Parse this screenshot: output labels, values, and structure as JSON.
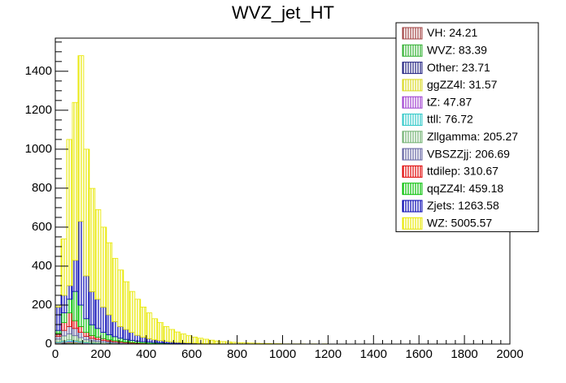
{
  "chart_data": {
    "type": "histogram",
    "stacked": true,
    "title": "WVZ_jet_HT",
    "bins": [
      0,
      25,
      50,
      75,
      100,
      125,
      150,
      175,
      200,
      225,
      250,
      275,
      300,
      325,
      350,
      375,
      400,
      425,
      450,
      475,
      500,
      525,
      550,
      575,
      600,
      625,
      650,
      675,
      700,
      725,
      750,
      775,
      800,
      825,
      850,
      875,
      900,
      925,
      950,
      975,
      1000,
      1025,
      1050,
      1075,
      1100,
      1125,
      1150,
      1175,
      1200
    ],
    "series": [
      {
        "name": "VH: 24.21",
        "color": "#a04040",
        "values": [
          1,
          1,
          1,
          1,
          1,
          0,
          0,
          0,
          0,
          0,
          0,
          0,
          0,
          0,
          0,
          0,
          0,
          0,
          0,
          0,
          0,
          0,
          0,
          0,
          0,
          0,
          0,
          0,
          0,
          0,
          0,
          0,
          0,
          0,
          0,
          0,
          0,
          0,
          0,
          0,
          0,
          0,
          0,
          0,
          0,
          0,
          0,
          0
        ]
      },
      {
        "name": "WVZ: 83.39",
        "color": "#30b030",
        "values": [
          2,
          3,
          4,
          4,
          3,
          2,
          2,
          1,
          1,
          1,
          1,
          0,
          0,
          0,
          0,
          0,
          0,
          0,
          0,
          0,
          0,
          0,
          0,
          0,
          0,
          0,
          0,
          0,
          0,
          0,
          0,
          0,
          0,
          0,
          0,
          0,
          0,
          0,
          0,
          0,
          0,
          0,
          0,
          0,
          0,
          0,
          0,
          0
        ]
      },
      {
        "name": "Other: 23.71",
        "color": "#202080",
        "values": [
          1,
          2,
          2,
          1,
          1,
          1,
          0,
          0,
          0,
          0,
          0,
          0,
          0,
          0,
          0,
          0,
          0,
          0,
          0,
          0,
          0,
          0,
          0,
          0,
          0,
          0,
          0,
          0,
          0,
          0,
          0,
          0,
          0,
          0,
          0,
          0,
          0,
          0,
          0,
          0,
          0,
          0,
          0,
          0,
          0,
          0,
          0,
          0
        ]
      },
      {
        "name": "ggZZ4l: 31.57",
        "color": "#d8d820",
        "values": [
          1,
          2,
          3,
          3,
          2,
          1,
          1,
          1,
          0,
          0,
          0,
          0,
          0,
          0,
          0,
          0,
          0,
          0,
          0,
          0,
          0,
          0,
          0,
          0,
          0,
          0,
          0,
          0,
          0,
          0,
          0,
          0,
          0,
          0,
          0,
          0,
          0,
          0,
          0,
          0,
          0,
          0,
          0,
          0,
          0,
          0,
          0,
          0
        ]
      },
      {
        "name": "tZ: 47.87",
        "color": "#a040d0",
        "values": [
          2,
          3,
          4,
          3,
          2,
          2,
          1,
          1,
          1,
          0,
          0,
          0,
          0,
          0,
          0,
          0,
          0,
          0,
          0,
          0,
          0,
          0,
          0,
          0,
          0,
          0,
          0,
          0,
          0,
          0,
          0,
          0,
          0,
          0,
          0,
          0,
          0,
          0,
          0,
          0,
          0,
          0,
          0,
          0,
          0,
          0,
          0,
          0
        ]
      },
      {
        "name": "ttll: 76.72",
        "color": "#30c8c8",
        "values": [
          3,
          6,
          8,
          6,
          4,
          3,
          2,
          2,
          1,
          1,
          1,
          0,
          0,
          0,
          0,
          0,
          0,
          0,
          0,
          0,
          0,
          0,
          0,
          0,
          0,
          0,
          0,
          0,
          0,
          0,
          0,
          0,
          0,
          0,
          0,
          0,
          0,
          0,
          0,
          0,
          0,
          0,
          0,
          0,
          0,
          0,
          0,
          0
        ]
      },
      {
        "name": "Zllgamma: 205.27",
        "color": "#70b070",
        "values": [
          15,
          25,
          30,
          25,
          20,
          13,
          10,
          8,
          7,
          5,
          4,
          3,
          2,
          2,
          1,
          1,
          1,
          1,
          0,
          0,
          0,
          0,
          0,
          0,
          0,
          0,
          0,
          0,
          0,
          0,
          0,
          0,
          0,
          0,
          0,
          0,
          0,
          0,
          0,
          0,
          0,
          0,
          0,
          0,
          0,
          0,
          0,
          0
        ]
      },
      {
        "name": "VBSZZjj: 206.69",
        "color": "#6060a0",
        "values": [
          15,
          28,
          38,
          37,
          27,
          18,
          13,
          11,
          9,
          8,
          6,
          6,
          5,
          3,
          3,
          2,
          2,
          1,
          1,
          1,
          1,
          1,
          0,
          0,
          0,
          0,
          0,
          0,
          0,
          0,
          0,
          0,
          0,
          0,
          0,
          0,
          0,
          0,
          0,
          0,
          0,
          0,
          0,
          0,
          0,
          0,
          0,
          0
        ]
      },
      {
        "name": "ttdilep: 310.67",
        "color": "#e00000",
        "values": [
          15,
          40,
          70,
          40,
          30,
          20,
          15,
          11,
          9,
          7,
          5,
          4,
          3,
          3,
          2,
          2,
          1,
          1,
          1,
          1,
          0,
          0,
          1,
          1,
          0,
          0,
          0,
          0,
          0,
          0,
          0,
          0,
          0,
          0,
          0,
          0,
          0,
          0,
          0,
          0,
          0,
          0,
          0,
          0,
          0,
          0,
          0,
          0
        ]
      },
      {
        "name": "qqZZ4l: 459.18",
        "color": "#00c000",
        "values": [
          15,
          50,
          70,
          150,
          110,
          70,
          55,
          45,
          32,
          26,
          21,
          17,
          14,
          11,
          9,
          7,
          6,
          5,
          4,
          3,
          3,
          2,
          2,
          1,
          2,
          1,
          1,
          1,
          1,
          0,
          0,
          0,
          0,
          0,
          0,
          0,
          0,
          0,
          0,
          0,
          0,
          0,
          0,
          0,
          0,
          0,
          0,
          0
        ]
      },
      {
        "name": "Zjets: 1263.58",
        "color": "#0000b0",
        "values": [
          120,
          90,
          70,
          160,
          430,
          220,
          170,
          150,
          130,
          102,
          77,
          60,
          51,
          41,
          30,
          23,
          18,
          14,
          12,
          9,
          7,
          6,
          4,
          4,
          3,
          3,
          2,
          1,
          1,
          1,
          1,
          1,
          1,
          0,
          0,
          0,
          0,
          0,
          0,
          0,
          0,
          0,
          0,
          0,
          0,
          0,
          0,
          0
        ]
      },
      {
        "name": "WZ: 5005.57",
        "color": "#e8e800",
        "values": [
          10,
          290,
          750,
          810,
          850,
          650,
          530,
          460,
          410,
          370,
          325,
          290,
          245,
          210,
          185,
          155,
          132,
          108,
          92,
          76,
          64,
          53,
          45,
          37,
          31,
          26,
          22,
          18,
          14,
          12,
          10,
          8,
          6,
          6,
          5,
          4,
          3,
          3,
          2,
          2,
          1,
          1,
          1,
          1,
          0,
          1,
          0,
          1
        ]
      }
    ],
    "xlim": [
      0,
      2000
    ],
    "xticks": [
      0,
      200,
      400,
      600,
      800,
      1000,
      1200,
      1400,
      1600,
      1800,
      2000
    ],
    "ylim": [
      0,
      1570
    ],
    "yticks": [
      0,
      200,
      400,
      600,
      800,
      1000,
      1200,
      1400
    ]
  }
}
